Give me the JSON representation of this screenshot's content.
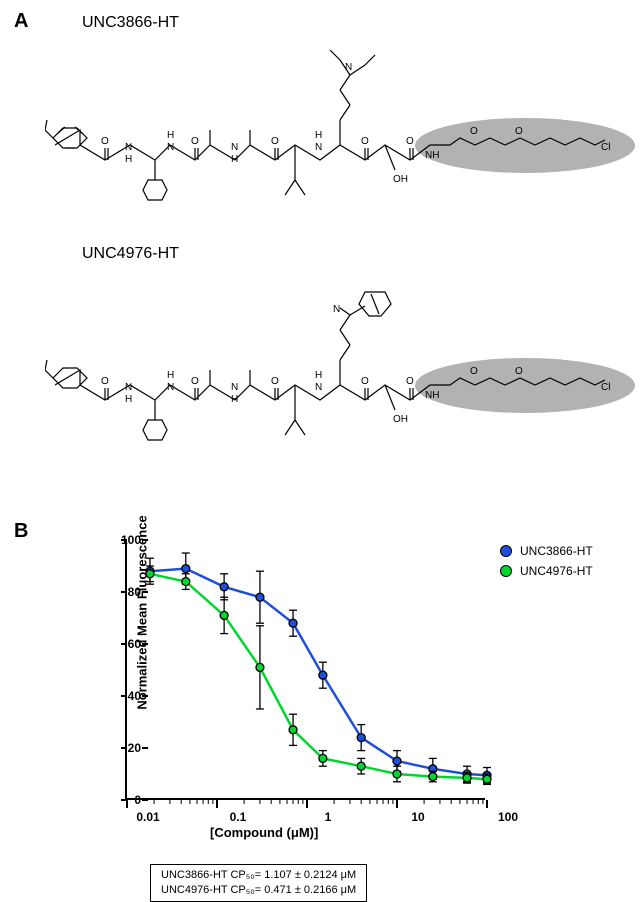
{
  "panelA": {
    "label": "A",
    "compound1": "UNC3866-HT",
    "compound2": "UNC4976-HT",
    "highlight_color": "#888888"
  },
  "panelB": {
    "label": "B",
    "chart": {
      "type": "line",
      "xlabel": "[Compound (μM)]",
      "ylabel": "Normalized Mean Fluorescence",
      "xscale": "log",
      "xlim": [
        0.01,
        100
      ],
      "ylim": [
        0,
        100
      ],
      "ytick_step": 20,
      "xticks": [
        0.01,
        0.1,
        1,
        10,
        100
      ],
      "xtick_labels": [
        "0.01",
        "0.1",
        "1",
        "10",
        "100"
      ],
      "background_color": "#ffffff",
      "axis_color": "#000000",
      "line_width": 2.5,
      "marker_size": 8,
      "marker_border": "#000000",
      "label_fontsize": 13,
      "tick_fontsize": 12,
      "series": [
        {
          "name": "UNC3866-HT",
          "color": "#1f4fd8",
          "x": [
            0.018,
            0.045,
            0.12,
            0.3,
            0.7,
            1.5,
            4,
            10,
            25,
            60,
            100
          ],
          "y": [
            88,
            89,
            82,
            78,
            68,
            48,
            24,
            15,
            12,
            10,
            9.5
          ],
          "err": [
            5,
            6,
            5,
            10,
            5,
            5,
            5,
            4,
            4,
            3,
            3
          ]
        },
        {
          "name": "UNC4976-HT",
          "color": "#00d62e",
          "x": [
            0.018,
            0.045,
            0.12,
            0.3,
            0.7,
            1.5,
            4,
            10,
            25,
            60,
            100
          ],
          "y": [
            87,
            84,
            71,
            51,
            27,
            16,
            13,
            10,
            9,
            8.5,
            8
          ],
          "err": [
            3,
            3,
            7,
            16,
            6,
            3,
            3,
            3,
            2,
            2,
            2
          ]
        }
      ]
    },
    "legend": {
      "item1": "UNC3866-HT",
      "item2": "UNC4976-HT"
    },
    "cp50": {
      "line1": "UNC3866-HT CP₅₀= 1.107 ± 0.2124 μM",
      "line2": "UNC4976-HT CP₅₀= 0.471 ± 0.2166 μM"
    }
  }
}
